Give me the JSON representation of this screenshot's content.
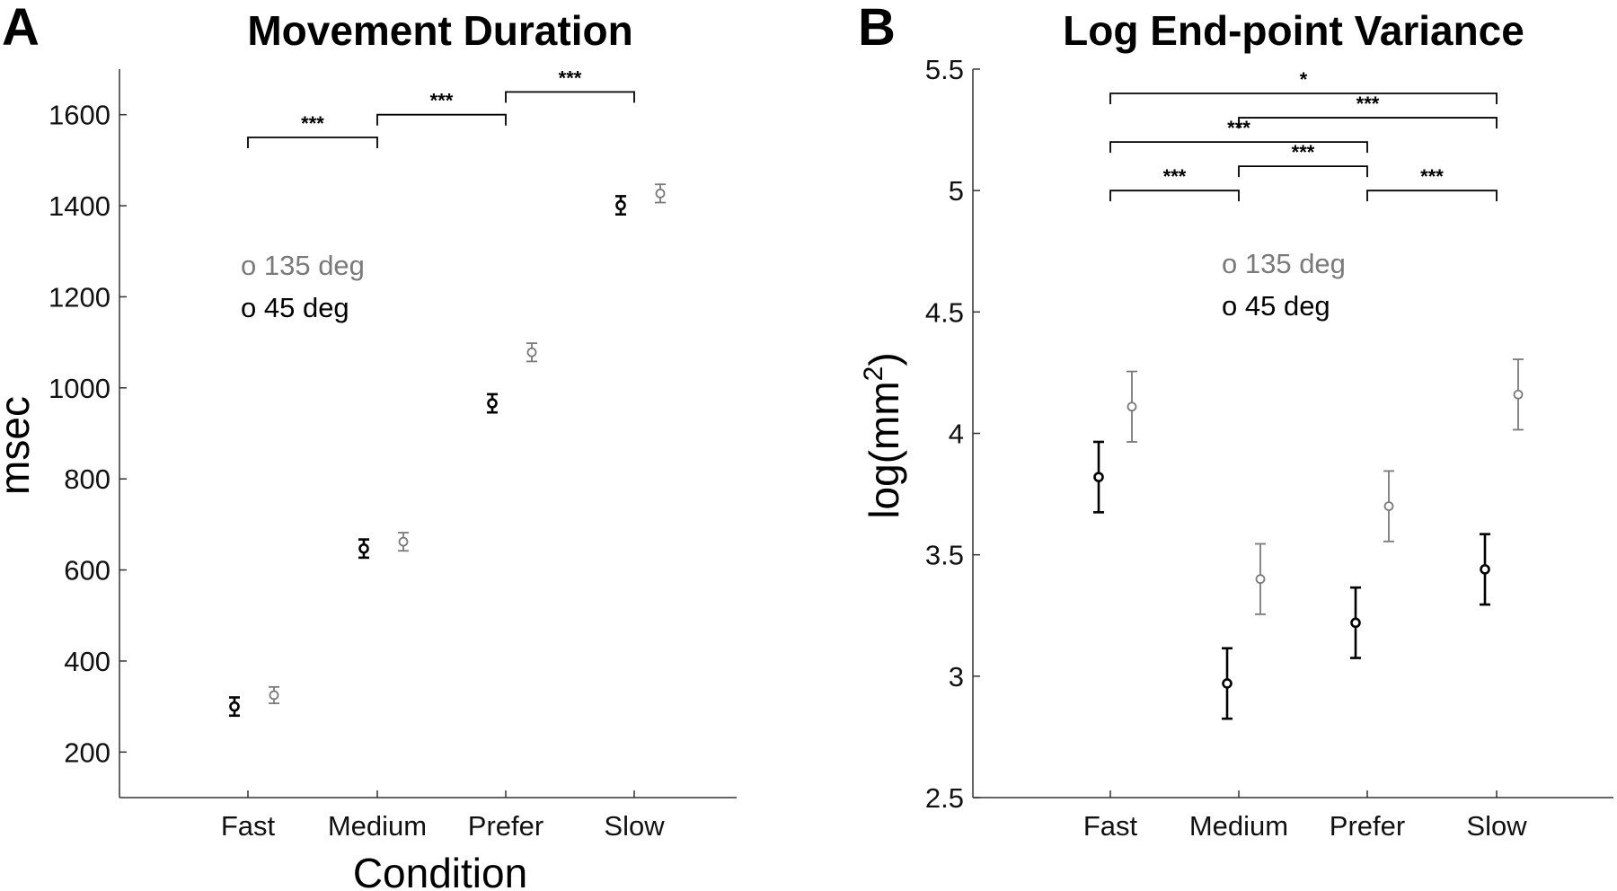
{
  "chart_data": [
    {
      "panel": "A",
      "type": "scatter",
      "title": "Movement Duration",
      "xlabel": "Condition",
      "ylabel": "msec",
      "categories": [
        "Fast",
        "Medium",
        "Prefer",
        "Slow"
      ],
      "ylim": [
        100,
        1700
      ],
      "yticks": [
        200,
        400,
        600,
        800,
        1000,
        1200,
        1400,
        1600
      ],
      "legend": {
        "placement": "upper-left",
        "entries": [
          {
            "label": "o 135 deg",
            "color": "#7a7a7a"
          },
          {
            "label": "o 45 deg",
            "color": "#000000"
          }
        ]
      },
      "series": [
        {
          "name": "135 deg",
          "color": "#7a7a7a",
          "values": [
            325,
            662,
            1078,
            1427
          ],
          "errors": [
            18,
            20,
            20,
            20
          ]
        },
        {
          "name": "45 deg",
          "color": "#000000",
          "values": [
            300,
            647,
            966,
            1401
          ],
          "errors": [
            20,
            20,
            20,
            20
          ]
        }
      ],
      "significance": [
        {
          "from": 0,
          "to": 1,
          "y": 1550,
          "label": "***"
        },
        {
          "from": 1,
          "to": 2,
          "y": 1600,
          "label": "***"
        },
        {
          "from": 2,
          "to": 3,
          "y": 1650,
          "label": "***"
        }
      ]
    },
    {
      "panel": "B",
      "type": "scatter",
      "title": "Log End-point Variance",
      "xlabel": "",
      "ylabel": "log(mm",
      "ylabel_sup": "2",
      "ylabel_close": ")",
      "categories": [
        "Fast",
        "Medium",
        "Prefer",
        "Slow"
      ],
      "ylim": [
        2.5,
        5.5
      ],
      "yticks": [
        "2.5",
        "3",
        "3.5",
        "4",
        "4.5",
        "5",
        "5.5"
      ],
      "legend": {
        "placement": "top-center",
        "entries": [
          {
            "label": "o 135 deg",
            "color": "#7a7a7a"
          },
          {
            "label": "o 45 deg",
            "color": "#000000"
          }
        ]
      },
      "series": [
        {
          "name": "135 deg",
          "color": "#7a7a7a",
          "values": [
            4.11,
            3.4,
            3.7,
            4.16
          ],
          "errors": [
            0.145,
            0.145,
            0.145,
            0.145
          ]
        },
        {
          "name": "45 deg",
          "color": "#000000",
          "values": [
            3.82,
            2.97,
            3.22,
            3.44
          ],
          "errors": [
            0.145,
            0.145,
            0.145,
            0.145
          ]
        }
      ],
      "significance": [
        {
          "from": 0,
          "to": 1,
          "y": 5.0,
          "label": "***"
        },
        {
          "from": 1,
          "to": 2,
          "y": 5.1,
          "label": "***"
        },
        {
          "from": 2,
          "to": 3,
          "y": 5.0,
          "label": "***"
        },
        {
          "from": 0,
          "to": 2,
          "y": 5.2,
          "label": "***"
        },
        {
          "from": 1,
          "to": 3,
          "y": 5.3,
          "label": "***"
        },
        {
          "from": 0,
          "to": 3,
          "y": 5.4,
          "label": "*"
        }
      ]
    }
  ]
}
